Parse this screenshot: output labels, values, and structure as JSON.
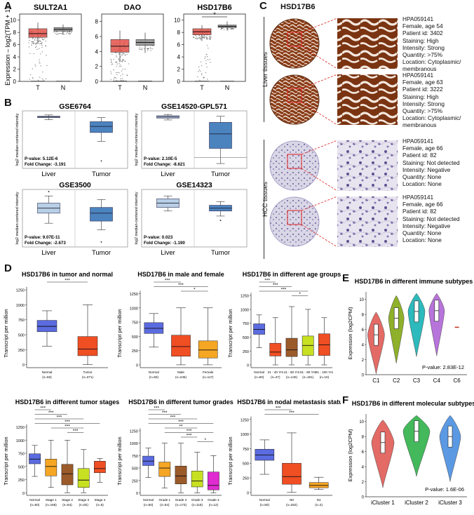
{
  "figure_letters": {
    "a": "A",
    "b": "B",
    "c": "C",
    "d": "D",
    "e": "E",
    "f": "F"
  },
  "panel_a": {
    "ylabel": "Expression – log2(TPM + 1)",
    "groups": [
      "T",
      "N"
    ],
    "colors": {
      "tumor": "#e5534b",
      "normal": "#8c8c8c"
    },
    "plots": [
      {
        "title": "SULT2A1",
        "yticks": [
          "0",
          "2",
          "4",
          "6",
          "8",
          "10"
        ]
      },
      {
        "title": "DAO",
        "yticks": [
          "0",
          "2",
          "4",
          "6",
          "8"
        ]
      },
      {
        "title": "HSD17B6",
        "yticks": [
          "0",
          "2",
          "4",
          "6",
          "8",
          "10"
        ],
        "significance": "*"
      }
    ]
  },
  "panel_b": {
    "ylabel": "log2 median-centered intensity",
    "groups": [
      "Liver",
      "Tumor"
    ],
    "plots": [
      {
        "title": "GSE6764",
        "pvalue": "P-value: 5.12E-6",
        "fc": "Fold Change: -3.191"
      },
      {
        "title": "GSE14520-GPL571",
        "pvalue": "P-value: 2.10E-5",
        "fc": "Fold Change: -8.621"
      },
      {
        "title": "GSE3500",
        "pvalue": "P-value: 9.07E-11",
        "fc": "Fold Change: -2.673"
      },
      {
        "title": "GSE14323",
        "pvalue": "P-value: 0.023",
        "fc": "Fold Change: -1.190"
      }
    ]
  },
  "panel_c": {
    "title": "HSD17B6",
    "liver_label": "Liver tissues",
    "hcc_label": "HCC tissues",
    "samples": [
      {
        "l1": "HPA059141",
        "l2": "Female, age 54",
        "l3": "Patient id: 3402",
        "l4": "Staining: High",
        "l5": "Intensity: Strong",
        "l6": "Quantity: >75%",
        "l7": "Location: Cytoplasmic/",
        "l8": "membranous"
      },
      {
        "l1": "HPA059141",
        "l2": "Female, age 63",
        "l3": "Patient id: 3222",
        "l4": "Staining: High",
        "l5": "Intensity: Strong",
        "l6": "Quantity: >75%",
        "l7": "Location: Cytoplasmic/",
        "l8": "membranous"
      },
      {
        "l1": "HPA059141",
        "l2": "Female, age 66",
        "l3": "Patient id: 82",
        "l4": "Staining: Not detected",
        "l5": "Intensity: Negative",
        "l6": "Quantity: None",
        "l7": "Location: None",
        "l8": ""
      },
      {
        "l1": "HPA059141",
        "l2": "Female, age 66",
        "l3": "Patient id: 82",
        "l4": "Staining: Not detected",
        "l5": "Intensity: Negative",
        "l6": "Quantity: None",
        "l7": "Location: None",
        "l8": ""
      }
    ]
  },
  "panel_d": {
    "ylabel": "Transcript per million",
    "yticks": [
      "0",
      "250",
      "500",
      "750",
      "1000",
      "1250"
    ],
    "plots": [
      {
        "title": "HSD17B6 in tumor and normal",
        "cats": [
          "Normal",
          "Tumor"
        ],
        "ns": [
          "(n=50)",
          "(n=371)"
        ],
        "sig": [
          "***"
        ]
      },
      {
        "title": "HSD17B6 in male and female",
        "cats": [
          "Normal",
          "Male",
          "Female"
        ],
        "ns": [
          "(n=50)",
          "(n=245)",
          "(n=117)"
        ],
        "sig": [
          "***",
          "***",
          "*"
        ]
      },
      {
        "title": "HSD17B6 in different age groups",
        "cats": [
          "Normal",
          "21 - 40 Yrs",
          "41 - 60 Yrs",
          "61 - 80 Yrs",
          "81 - 100 Yrs"
        ],
        "ns": [
          "(n=50)",
          "(n=27)",
          "(n=140)",
          "(n=181)",
          "(n=10)"
        ],
        "sig": [
          "***",
          "***",
          "***",
          "*"
        ]
      },
      {
        "title": "HSD17B6 in different tumor stages",
        "cats": [
          "Normal",
          "Stage 1",
          "Stage 2",
          "Stage 3",
          "Stage 4"
        ],
        "ns": [
          "(n=50)",
          "(n=168)",
          "(n=84)",
          "(n=82)",
          "(n=6)"
        ],
        "sig": [
          "***",
          "***",
          "***",
          "***",
          "***",
          "***"
        ]
      },
      {
        "title": "HSD17B6 in different tumor grades",
        "cats": [
          "Normal",
          "Grade 1",
          "Grade 2",
          "Grade 3",
          "Grade 4"
        ],
        "ns": [
          "(n=50)",
          "(n=54)",
          "(n=173)",
          "(n=118)",
          "(n=12)"
        ],
        "sig": [
          "***",
          "***",
          "***",
          "***",
          "**",
          "***",
          "***",
          "*"
        ]
      },
      {
        "title": "HSD17B6 in nodal metastasis status",
        "cats": [
          "Normal",
          "N0",
          "N1"
        ],
        "ns": [
          "(n=50)",
          "(n=252)",
          "(n=4)"
        ],
        "sig": [
          "***",
          "***"
        ]
      }
    ]
  },
  "panel_e": {
    "title": "HSD17B6 in different immune subtypes",
    "ylabel": "Expression (log2CPM)",
    "cats": [
      "C1",
      "C2",
      "C3",
      "C4",
      "C6"
    ],
    "yticks": [
      "0",
      "2",
      "4",
      "6",
      "8",
      "10"
    ],
    "pvalue": "P-value: 2.83E-12",
    "colors": [
      "#e05a55",
      "#82a814",
      "#17b3b5",
      "#b065d6",
      "#c0392b"
    ]
  },
  "panel_f": {
    "title": "HSD17B6 in different molecular subtypes",
    "ylabel": "Expression (log2CPM)",
    "cats": [
      "iCluster 1",
      "iCluster 2",
      "iCluster 3"
    ],
    "yticks": [
      "0",
      "2",
      "4",
      "6",
      "8",
      "10"
    ],
    "pvalue": "P-value: 1.6E-06",
    "colors": [
      "#e05a55",
      "#2fb24a",
      "#4b8fe0"
    ]
  }
}
